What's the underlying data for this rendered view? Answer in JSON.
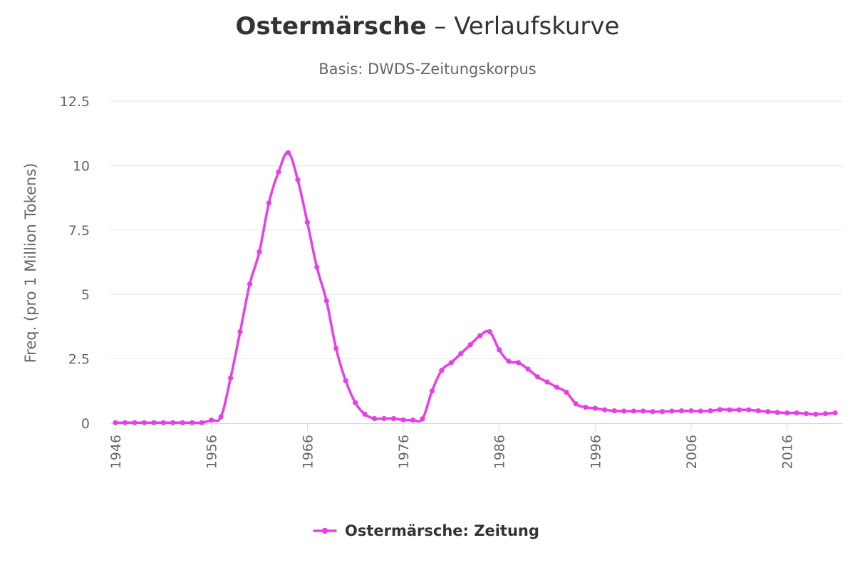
{
  "chart_data": {
    "type": "line",
    "title_term": "Ostermärsche",
    "title_sep": " – ",
    "title_rest": "Verlaufskurve",
    "subtitle": "Basis: DWDS-Zeitungskorpus",
    "ylabel": "Freq. (pro 1 Million Tokens)",
    "xlabel": "",
    "ylim": [
      0,
      12.5
    ],
    "xlim": [
      1946,
      2021
    ],
    "yticks": [
      {
        "value": 0,
        "label": "0"
      },
      {
        "value": 2.5,
        "label": "2.5"
      },
      {
        "value": 5,
        "label": "5"
      },
      {
        "value": 7.5,
        "label": "7.5"
      },
      {
        "value": 10,
        "label": "10"
      },
      {
        "value": 12.5,
        "label": "12.5"
      }
    ],
    "xticks": [
      {
        "value": 1946,
        "label": "1946"
      },
      {
        "value": 1956,
        "label": "1956"
      },
      {
        "value": 1966,
        "label": "1966"
      },
      {
        "value": 1976,
        "label": "1976"
      },
      {
        "value": 1986,
        "label": "1986"
      },
      {
        "value": 1996,
        "label": "1996"
      },
      {
        "value": 2006,
        "label": "2006"
      },
      {
        "value": 2016,
        "label": "2016"
      }
    ],
    "grid": true,
    "legend_position": "bottom-center",
    "series": [
      {
        "name": "Ostermärsche: Zeitung",
        "color": "#e83ee8",
        "x": [
          1946,
          1947,
          1948,
          1949,
          1950,
          1951,
          1952,
          1953,
          1954,
          1955,
          1956,
          1957,
          1958,
          1959,
          1960,
          1961,
          1962,
          1963,
          1964,
          1965,
          1966,
          1967,
          1968,
          1969,
          1970,
          1971,
          1972,
          1973,
          1974,
          1975,
          1976,
          1977,
          1978,
          1979,
          1980,
          1981,
          1982,
          1983,
          1984,
          1985,
          1986,
          1987,
          1988,
          1989,
          1990,
          1991,
          1992,
          1993,
          1994,
          1995,
          1996,
          1997,
          1998,
          1999,
          2000,
          2001,
          2002,
          2003,
          2004,
          2005,
          2006,
          2007,
          2008,
          2009,
          2010,
          2011,
          2012,
          2013,
          2014,
          2015,
          2016,
          2017,
          2018,
          2019,
          2020,
          2021
        ],
        "values": [
          0.02,
          0.02,
          0.02,
          0.02,
          0.02,
          0.02,
          0.02,
          0.02,
          0.02,
          0.02,
          0.12,
          0.25,
          1.75,
          3.55,
          5.4,
          6.65,
          8.55,
          9.75,
          10.5,
          9.45,
          7.8,
          6.05,
          4.75,
          2.9,
          1.65,
          0.8,
          0.35,
          0.18,
          0.18,
          0.18,
          0.13,
          0.12,
          0.17,
          1.25,
          2.05,
          2.35,
          2.7,
          3.05,
          3.4,
          3.55,
          2.85,
          2.4,
          2.35,
          2.1,
          1.8,
          1.6,
          1.4,
          1.2,
          0.75,
          0.62,
          0.58,
          0.52,
          0.48,
          0.47,
          0.47,
          0.47,
          0.45,
          0.45,
          0.47,
          0.48,
          0.48,
          0.47,
          0.48,
          0.53,
          0.52,
          0.52,
          0.52,
          0.48,
          0.45,
          0.42,
          0.4,
          0.4,
          0.37,
          0.35,
          0.37,
          0.4
        ]
      }
    ]
  }
}
